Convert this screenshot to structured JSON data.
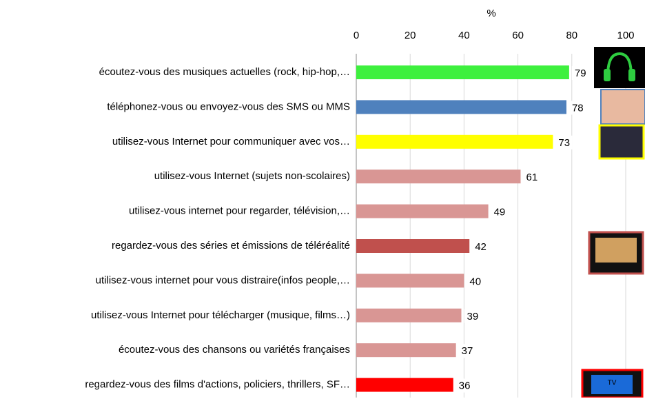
{
  "chart_data": {
    "type": "bar",
    "orientation": "horizontal",
    "x_label": "%",
    "categories": [
      "écoutez-vous des musiques actuelles (rock, hip-hop,…",
      "téléphonez-vous ou envoyez-vous des SMS ou MMS",
      "utilisez-vous Internet pour communiquer avec vos…",
      "utilisez-vous Internet (sujets non-scolaires)",
      "utilisez-vous internet pour regarder, télévision,…",
      "regardez-vous des séries et émissions de téléréalité",
      "utilisez-vous internet pour vous distraire(infos people,…",
      "utilisez-vous Internet pour télécharger (musique, films…)",
      "écoutez-vous des chansons ou variétés françaises",
      "regardez-vous des films d'actions, policiers, thrillers, SF…"
    ],
    "values": [
      79,
      78,
      73,
      61,
      49,
      42,
      40,
      39,
      37,
      36
    ],
    "colors": [
      "#3ef03e",
      "#4f81bd",
      "#ffff00",
      "#d99694",
      "#d99694",
      "#c0504d",
      "#d99694",
      "#d99694",
      "#d99694",
      "#ff0000"
    ],
    "xlim": [
      0,
      100
    ],
    "xticks": [
      0,
      20,
      40,
      60,
      80,
      100
    ],
    "grid": true,
    "annotations": [
      "TV"
    ]
  }
}
